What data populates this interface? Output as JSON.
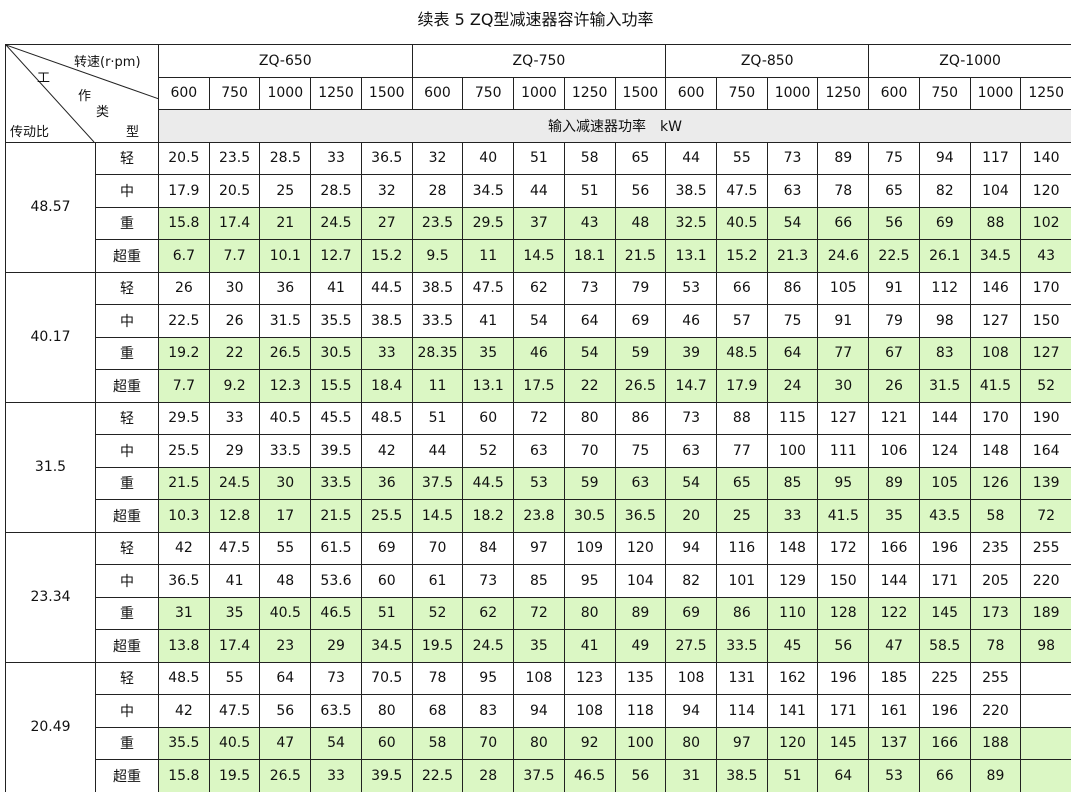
{
  "title": "续表 5 ZQ型减速器容许输入功率",
  "table": {
    "corner": {
      "speed": "转速(r·pm)",
      "work_type": [
        "工",
        "作",
        "类",
        "型"
      ],
      "ratio": "传动比"
    },
    "groups": [
      {
        "name": "ZQ-650",
        "speeds": [
          600,
          750,
          1000,
          1250,
          1500
        ]
      },
      {
        "name": "ZQ-750",
        "speeds": [
          600,
          750,
          1000,
          1250,
          1500
        ]
      },
      {
        "name": "ZQ-850",
        "speeds": [
          600,
          750,
          1000,
          1250
        ]
      },
      {
        "name": "ZQ-1000",
        "speeds": [
          600,
          750,
          1000,
          1250
        ]
      }
    ],
    "unit": "输入减速器功率　kW",
    "rows": [
      {
        "ratio": "48.57",
        "types": [
          {
            "type": "轻",
            "values": [
              20.5,
              23.5,
              28.5,
              33,
              36.5,
              32,
              40,
              51,
              58,
              65,
              44,
              55,
              73,
              89,
              75,
              94,
              117,
              140
            ]
          },
          {
            "type": "中",
            "values": [
              17.9,
              20.5,
              25,
              28.5,
              32,
              28,
              34.5,
              44,
              51,
              56,
              38.5,
              47.5,
              63,
              78,
              65,
              82,
              104,
              120
            ]
          },
          {
            "type": "重",
            "values": [
              15.8,
              17.4,
              21,
              24.5,
              27,
              23.5,
              29.5,
              37,
              43,
              48,
              32.5,
              40.5,
              54,
              66,
              56,
              69,
              88,
              102
            ]
          },
          {
            "type": "超重",
            "values": [
              6.7,
              7.7,
              10.1,
              12.7,
              15.2,
              9.5,
              11,
              14.5,
              18.1,
              21.5,
              13.1,
              15.2,
              21.3,
              24.6,
              22.5,
              26.1,
              34.5,
              43
            ]
          }
        ]
      },
      {
        "ratio": "40.17",
        "types": [
          {
            "type": "轻",
            "values": [
              26,
              30,
              36,
              41,
              44.5,
              38.5,
              47.5,
              62,
              73,
              79,
              53,
              66,
              86,
              105,
              91,
              112,
              146,
              170
            ]
          },
          {
            "type": "中",
            "values": [
              22.5,
              26,
              31.5,
              35.5,
              38.5,
              33.5,
              41,
              54,
              64,
              69,
              46,
              57,
              75,
              91,
              79,
              98,
              127,
              150
            ]
          },
          {
            "type": "重",
            "values": [
              19.2,
              22,
              26.5,
              30.5,
              33,
              28.35,
              35,
              46,
              54,
              59,
              39,
              48.5,
              64,
              77,
              67,
              83,
              108,
              127
            ]
          },
          {
            "type": "超重",
            "values": [
              7.7,
              9.2,
              12.3,
              15.5,
              18.4,
              11,
              13.1,
              17.5,
              22,
              26.5,
              14.7,
              17.9,
              24,
              30,
              26,
              31.5,
              41.5,
              52
            ]
          }
        ]
      },
      {
        "ratio": "31.5",
        "types": [
          {
            "type": "轻",
            "values": [
              29.5,
              33,
              40.5,
              45.5,
              48.5,
              51,
              60,
              72,
              80,
              86,
              73,
              88,
              115,
              127,
              121,
              144,
              170,
              190
            ]
          },
          {
            "type": "中",
            "values": [
              25.5,
              29,
              33.5,
              39.5,
              42,
              44,
              52,
              63,
              70,
              75,
              63,
              77,
              100,
              111,
              106,
              124,
              148,
              164
            ]
          },
          {
            "type": "重",
            "values": [
              21.5,
              24.5,
              30,
              33.5,
              36,
              37.5,
              44.5,
              53,
              59,
              63,
              54,
              65,
              85,
              95,
              89,
              105,
              126,
              139
            ]
          },
          {
            "type": "超重",
            "values": [
              10.3,
              12.8,
              17,
              21.5,
              25.5,
              14.5,
              18.2,
              23.8,
              30.5,
              36.5,
              20,
              25,
              33,
              41.5,
              35,
              43.5,
              58,
              72
            ]
          }
        ]
      },
      {
        "ratio": "23.34",
        "types": [
          {
            "type": "轻",
            "values": [
              42,
              47.5,
              55,
              61.5,
              69,
              70,
              84,
              97,
              109,
              120,
              94,
              116,
              148,
              172,
              166,
              196,
              235,
              255
            ]
          },
          {
            "type": "中",
            "values": [
              36.5,
              41,
              48,
              53.6,
              60,
              61,
              73,
              85,
              95,
              104,
              82,
              101,
              129,
              150,
              144,
              171,
              205,
              220
            ]
          },
          {
            "type": "重",
            "values": [
              31,
              35,
              40.5,
              46.5,
              51,
              52,
              62,
              72,
              80,
              89,
              69,
              86,
              110,
              128,
              122,
              145,
              173,
              189
            ]
          },
          {
            "type": "超重",
            "values": [
              13.8,
              17.4,
              23,
              29,
              34.5,
              19.5,
              24.5,
              35,
              41,
              49,
              27.5,
              33.5,
              45,
              56,
              47,
              58.5,
              78,
              98
            ]
          }
        ]
      },
      {
        "ratio": "20.49",
        "types": [
          {
            "type": "轻",
            "values": [
              48.5,
              55,
              64,
              73,
              70.5,
              78,
              95,
              108,
              123,
              135,
              108,
              131,
              162,
              196,
              185,
              225,
              255,
              null
            ]
          },
          {
            "type": "中",
            "values": [
              42,
              47.5,
              56,
              63.5,
              80,
              68,
              83,
              94,
              108,
              118,
              94,
              114,
              141,
              171,
              161,
              196,
              220,
              null
            ]
          },
          {
            "type": "重",
            "values": [
              35.5,
              40.5,
              47,
              54,
              60,
              58,
              70,
              80,
              92,
              100,
              80,
              97,
              120,
              145,
              137,
              166,
              188,
              null
            ]
          },
          {
            "type": "超重",
            "values": [
              15.8,
              19.5,
              26.5,
              33,
              39.5,
              22.5,
              28,
              37.5,
              46.5,
              56,
              31,
              38.5,
              51,
              64,
              53,
              66,
              89,
              null
            ]
          }
        ]
      }
    ]
  }
}
